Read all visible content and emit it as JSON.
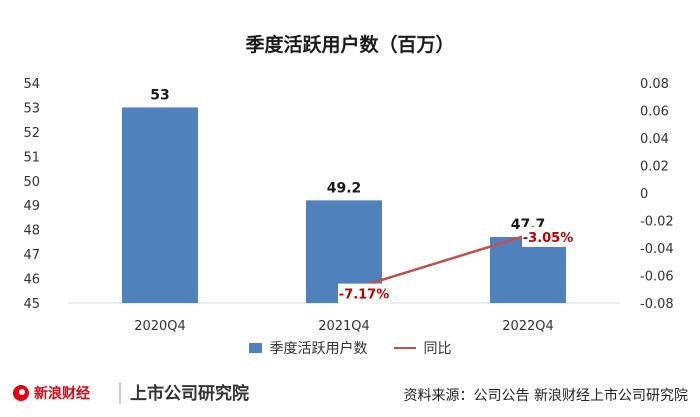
{
  "title": "季度活跃用户数（百万）",
  "source": "资料来源：公司公告 新浪财经上市公司研究院",
  "brand": {
    "left": "新浪财经",
    "right": "上市公司研究院",
    "watermark": "新浪财经 · 上市公司研究院"
  },
  "legend": {
    "bar": "季度活跃用户数",
    "line": "同比"
  },
  "colors": {
    "bar": "#4f81bd",
    "line": "#c0504d",
    "grid": "#d9d9d9",
    "label_red": "#c00000"
  },
  "chart_data": {
    "type": "bar",
    "categories": [
      "2020Q4",
      "2021Q4",
      "2022Q4"
    ],
    "series": [
      {
        "name": "季度活跃用户数",
        "type": "bar",
        "axis": "left",
        "values": [
          53,
          49.2,
          47.7
        ],
        "labels": [
          "53",
          "49.2",
          "47.7"
        ]
      },
      {
        "name": "同比",
        "type": "line",
        "axis": "right",
        "values": [
          null,
          -0.0717,
          -0.0305
        ],
        "labels": [
          "",
          "-7.17%",
          "-3.05%"
        ]
      }
    ],
    "ylim_left": [
      45,
      54
    ],
    "yticks_left": [
      "45",
      "46",
      "47",
      "48",
      "49",
      "50",
      "51",
      "52",
      "53",
      "54"
    ],
    "ylim_right": [
      -0.08,
      0.08
    ],
    "yticks_right": [
      "-0.08",
      "-0.06",
      "-0.04",
      "-0.02",
      "0",
      "0.02",
      "0.04",
      "0.06",
      "0.08"
    ],
    "grid": false,
    "legend_position": "bottom"
  }
}
